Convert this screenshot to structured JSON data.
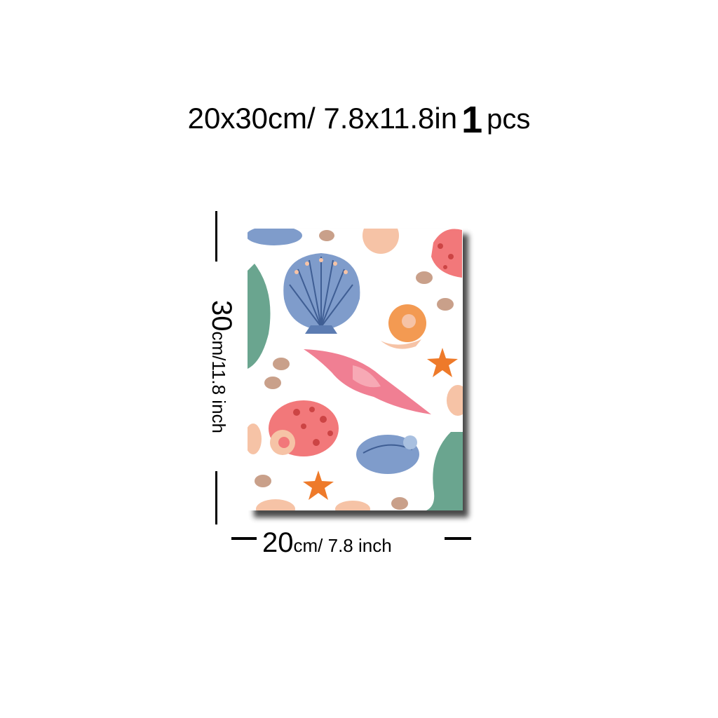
{
  "headline": {
    "size_text": "20x30cm/ 7.8x11.8in",
    "count": "1",
    "count_unit": "pcs"
  },
  "dimensions": {
    "height": {
      "value": "30",
      "unit_text": "cm/11.8 inch"
    },
    "width": {
      "value": "20",
      "unit_text": "cm/ 7.8 inch"
    }
  },
  "artwork": {
    "subject": "seashell pattern canvas",
    "colors": {
      "blue": "#7f9ccb",
      "dark_blue": "#3f5e94",
      "pink": "#f07f93",
      "coral": "#f2787a",
      "orange": "#f39a52",
      "peach": "#f6c3a6",
      "green": "#6aa58f",
      "starfish": "#ee7a2a",
      "cowrie": "#c9a08a"
    }
  }
}
